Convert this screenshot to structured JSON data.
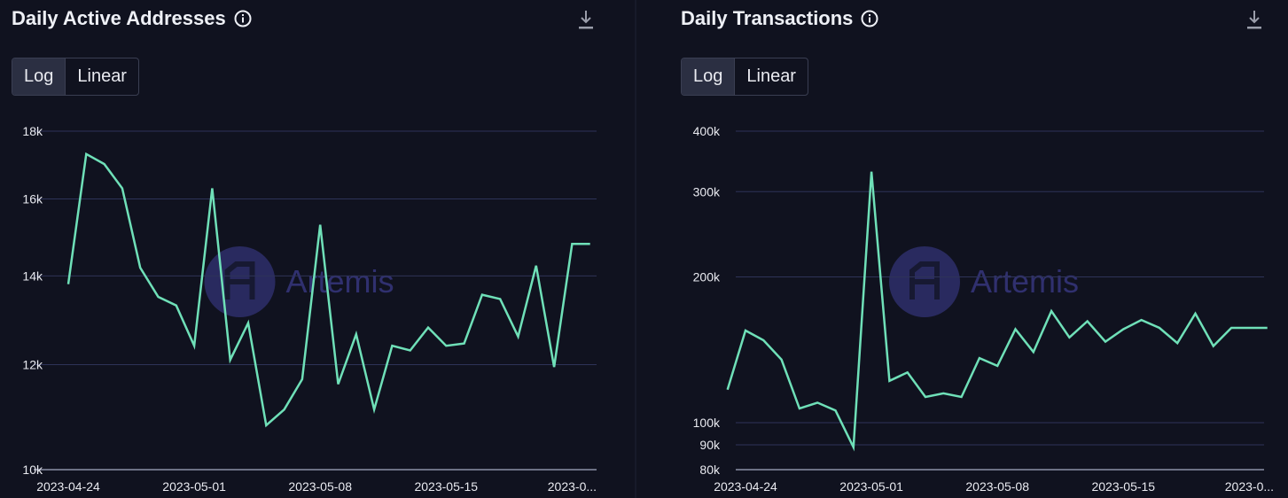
{
  "watermark": "Artemis",
  "colors": {
    "line": "#6fe0b8",
    "grid": "#2e3358",
    "axis": "#6d7185",
    "watermark": "#3b3b8a",
    "tick_text": "#e9eaf0"
  },
  "icons": {
    "info": "info-circle-icon",
    "download": "download-icon"
  },
  "chart_data": [
    {
      "type": "line",
      "title": "Daily Active Addresses",
      "scale_options": [
        "Log",
        "Linear"
      ],
      "selected_scale": "Log",
      "y_scale": "log",
      "ylim": [
        10000,
        18000
      ],
      "y_ticks": [
        10000,
        12000,
        14000,
        16000,
        18000
      ],
      "y_tick_labels": [
        "10k",
        "12k",
        "14k",
        "16k",
        "18k"
      ],
      "x_tick_labels": [
        "2023-04-24",
        "2023-05-01",
        "2023-05-08",
        "2023-05-15",
        "2023-0..."
      ],
      "x_tick_dates": [
        "2023-04-24",
        "2023-05-01",
        "2023-05-08",
        "2023-05-15",
        "2023-05-22"
      ],
      "grid": true,
      "x": [
        "2023-04-24",
        "2023-04-25",
        "2023-04-26",
        "2023-04-27",
        "2023-04-28",
        "2023-04-29",
        "2023-04-30",
        "2023-05-01",
        "2023-05-02",
        "2023-05-03",
        "2023-05-04",
        "2023-05-05",
        "2023-05-06",
        "2023-05-07",
        "2023-05-08",
        "2023-05-09",
        "2023-05-10",
        "2023-05-11",
        "2023-05-12",
        "2023-05-13",
        "2023-05-14",
        "2023-05-15",
        "2023-05-16",
        "2023-05-17",
        "2023-05-18",
        "2023-05-19",
        "2023-05-20",
        "2023-05-21",
        "2023-05-22",
        "2023-05-23"
      ],
      "series": [
        {
          "values": [
            13800,
            17300,
            17000,
            16300,
            14200,
            13500,
            13300,
            12400,
            16300,
            12100,
            12900,
            10800,
            11100,
            11700,
            15300,
            11600,
            12650,
            11100,
            12400,
            12300,
            12800,
            12400,
            12450,
            13550,
            13450,
            12600,
            14250,
            11950,
            14800,
            14800
          ]
        }
      ]
    },
    {
      "type": "line",
      "title": "Daily Transactions",
      "scale_options": [
        "Log",
        "Linear"
      ],
      "selected_scale": "Log",
      "y_scale": "log",
      "ylim": [
        80000,
        400000
      ],
      "y_ticks": [
        80000,
        90000,
        100000,
        200000,
        300000,
        400000
      ],
      "y_tick_labels": [
        "80k",
        "90k",
        "100k",
        "200k",
        "300k",
        "400k"
      ],
      "x_tick_labels": [
        "2023-04-24",
        "2023-05-01",
        "2023-05-08",
        "2023-05-15",
        "2023-0..."
      ],
      "x_tick_dates": [
        "2023-04-24",
        "2023-05-01",
        "2023-05-08",
        "2023-05-15",
        "2023-05-22"
      ],
      "grid": true,
      "x": [
        "2023-04-23",
        "2023-04-24",
        "2023-04-25",
        "2023-04-26",
        "2023-04-27",
        "2023-04-28",
        "2023-04-29",
        "2023-04-30",
        "2023-05-01",
        "2023-05-02",
        "2023-05-03",
        "2023-05-04",
        "2023-05-05",
        "2023-05-06",
        "2023-05-07",
        "2023-05-08",
        "2023-05-09",
        "2023-05-10",
        "2023-05-11",
        "2023-05-12",
        "2023-05-13",
        "2023-05-14",
        "2023-05-15",
        "2023-05-16",
        "2023-05-17",
        "2023-05-18",
        "2023-05-19",
        "2023-05-20",
        "2023-05-21",
        "2023-05-22",
        "2023-05-23"
      ],
      "series": [
        {
          "values": [
            117000,
            155000,
            148000,
            135000,
            107000,
            110000,
            106000,
            89000,
            330000,
            122000,
            127000,
            113000,
            115000,
            113000,
            136000,
            131000,
            156000,
            140000,
            170000,
            150000,
            162000,
            147000,
            156000,
            163000,
            157000,
            146000,
            168000,
            144000,
            157000,
            157000,
            157000
          ]
        }
      ]
    }
  ]
}
